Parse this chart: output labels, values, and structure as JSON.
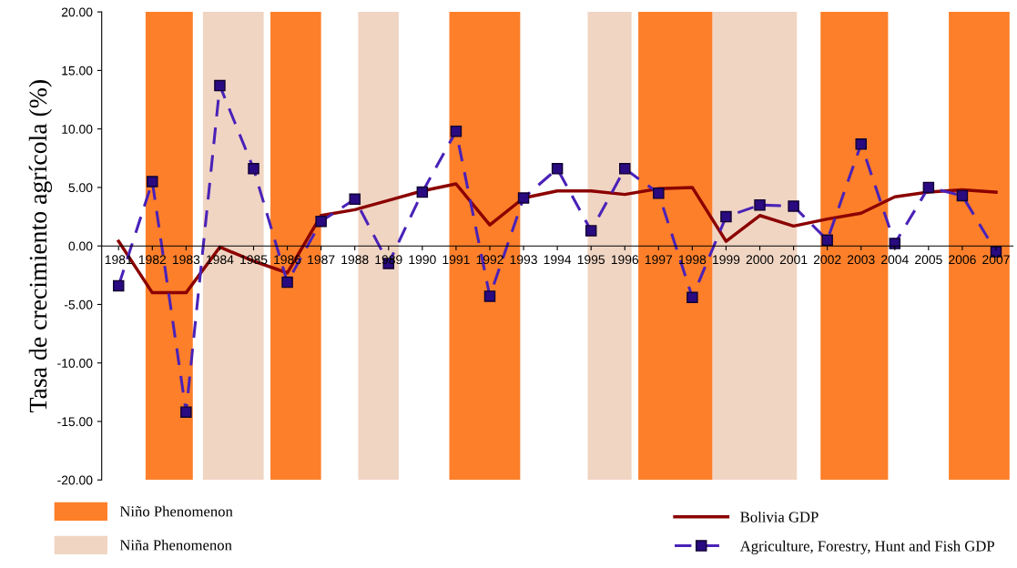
{
  "chart_data": {
    "type": "line",
    "ylabel": "Tasa de crecimiento agrícola (%)",
    "x": [
      1981,
      1982,
      1983,
      1984,
      1985,
      1986,
      1987,
      1988,
      1989,
      1990,
      1991,
      1992,
      1993,
      1994,
      1995,
      1996,
      1997,
      1998,
      1999,
      2000,
      2001,
      2002,
      2003,
      2004,
      2005,
      2006,
      2007
    ],
    "xlim": [
      1980.5,
      2007.5
    ],
    "xticks": [
      1981,
      1982,
      1983,
      1984,
      1985,
      1986,
      1987,
      1988,
      1989,
      1990,
      1991,
      1992,
      1993,
      1994,
      1995,
      1996,
      1997,
      1998,
      1999,
      2000,
      2001,
      2002,
      2003,
      2004,
      2005,
      2006,
      2007
    ],
    "ylim": [
      -20,
      20
    ],
    "yticks": [
      {
        "value": -20,
        "label": "-20.00"
      },
      {
        "value": -15,
        "label": "-15.00"
      },
      {
        "value": -10,
        "label": "-10.00"
      },
      {
        "value": -5,
        "label": "-5.00"
      },
      {
        "value": 0,
        "label": "0.00"
      },
      {
        "value": 5,
        "label": "5.00"
      },
      {
        "value": 10,
        "label": "10.00"
      },
      {
        "value": 15,
        "label": "15.00"
      },
      {
        "value": 20,
        "label": "20.00"
      }
    ],
    "bands": [
      {
        "axis": "x",
        "from": 1981.8,
        "to": 1983.2,
        "label": "Niño Phenomenon",
        "color": "#fd7f2a"
      },
      {
        "axis": "x",
        "from": 1983.5,
        "to": 1985.3,
        "label": "Niña Phenomenon",
        "color": "#f0d5c3"
      },
      {
        "axis": "x",
        "from": 1985.5,
        "to": 1987.0,
        "color": "#fd7f2a"
      },
      {
        "axis": "x",
        "from": 1988.1,
        "to": 1989.3,
        "color": "#f0d5c3"
      },
      {
        "axis": "x",
        "from": 1990.8,
        "to": 1992.9,
        "color": "#fd7f2a"
      },
      {
        "axis": "x",
        "from": 1994.9,
        "to": 1996.2,
        "color": "#f0d5c3"
      },
      {
        "axis": "x",
        "from": 1996.4,
        "to": 1998.6,
        "color": "#fd7f2a"
      },
      {
        "axis": "x",
        "from": 1998.6,
        "to": 2001.1,
        "color": "#f0d5c3"
      },
      {
        "axis": "x",
        "from": 2001.8,
        "to": 2003.8,
        "color": "#fd7f2a"
      },
      {
        "axis": "x",
        "from": 2005.6,
        "to": 2007.4,
        "color": "#fd7f2a"
      }
    ],
    "series": [
      {
        "name": "Bolivia GDP",
        "color": "#8b0000",
        "marker": "none",
        "line_style": "solid",
        "values": [
          0.4,
          -4.0,
          -4.0,
          -0.1,
          -1.3,
          -2.3,
          2.6,
          3.1,
          3.9,
          4.7,
          5.3,
          1.8,
          4.1,
          4.7,
          4.7,
          4.4,
          4.9,
          5.0,
          0.4,
          2.6,
          1.7,
          2.3,
          2.8,
          4.2,
          4.6,
          4.8,
          4.6
        ]
      },
      {
        "name": "Agriculture, Forestry, Hunt and Fish GDP",
        "color": "#4a22b8",
        "marker": "square",
        "line_style": "dashed",
        "values": [
          -3.4,
          5.5,
          -14.2,
          13.7,
          6.6,
          -3.1,
          2.1,
          4.0,
          -1.5,
          4.6,
          9.8,
          -4.3,
          4.1,
          6.6,
          1.3,
          6.6,
          4.5,
          -4.4,
          2.5,
          3.5,
          3.4,
          0.5,
          8.7,
          0.2,
          5.0,
          4.3,
          -0.5
        ]
      }
    ],
    "grid": false,
    "legend": "bottom"
  }
}
